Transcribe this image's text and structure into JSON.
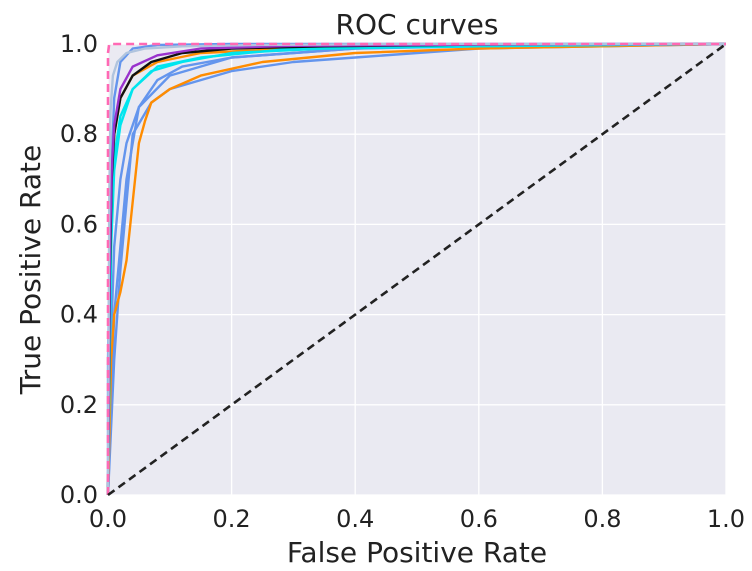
{
  "chart_data": {
    "type": "line",
    "title": "ROC curves",
    "xlabel": "False Positive Rate",
    "ylabel": "True Positive Rate",
    "xlim": [
      0.0,
      1.0
    ],
    "ylim": [
      0.0,
      1.0
    ],
    "xticks": [
      "0.0",
      "0.2",
      "0.4",
      "0.6",
      "0.8",
      "1.0"
    ],
    "yticks": [
      "0.0",
      "0.2",
      "0.4",
      "0.6",
      "0.8",
      "1.0"
    ],
    "grid": true,
    "background_color": "#eaeaf2",
    "grid_color": "#ffffff",
    "series": [
      {
        "color": "#6495ed",
        "x": [
          0.0,
          0.0,
          0.005,
          0.01,
          0.02,
          0.04,
          0.08,
          0.2,
          0.4,
          0.7,
          1.0
        ],
        "y": [
          0.0,
          0.3,
          0.7,
          0.88,
          0.96,
          0.99,
          0.998,
          1.0,
          1.0,
          1.0,
          1.0
        ]
      },
      {
        "color": "#6495ed",
        "x": [
          0.0,
          0.005,
          0.01,
          0.02,
          0.03,
          0.05,
          0.1,
          0.2,
          0.4,
          0.7,
          1.0
        ],
        "y": [
          0.0,
          0.35,
          0.55,
          0.7,
          0.78,
          0.86,
          0.93,
          0.97,
          0.99,
          1.0,
          1.0
        ]
      },
      {
        "color": "#6495ed",
        "x": [
          0.0,
          0.01,
          0.02,
          0.04,
          0.07,
          0.1,
          0.2,
          0.3,
          0.4,
          0.6,
          1.0
        ],
        "y": [
          0.0,
          0.3,
          0.5,
          0.8,
          0.87,
          0.9,
          0.94,
          0.96,
          0.97,
          0.99,
          1.0
        ]
      },
      {
        "color": "#6495ed",
        "x": [
          0.0,
          0.01,
          0.03,
          0.05,
          0.08,
          0.12,
          0.2,
          0.3,
          0.4,
          0.6,
          1.0
        ],
        "y": [
          0.0,
          0.4,
          0.7,
          0.86,
          0.92,
          0.95,
          0.97,
          0.98,
          0.99,
          0.995,
          1.0
        ]
      },
      {
        "color": "#ff8c00",
        "x": [
          0.0,
          0.005,
          0.01,
          0.02,
          0.03,
          0.04,
          0.05,
          0.06,
          0.07,
          0.1,
          0.15,
          0.25,
          0.4,
          0.6,
          1.0
        ],
        "y": [
          0.0,
          0.3,
          0.4,
          0.45,
          0.52,
          0.65,
          0.78,
          0.83,
          0.87,
          0.9,
          0.93,
          0.96,
          0.98,
          0.99,
          1.0
        ]
      },
      {
        "color": "#ff8c00",
        "x": [
          0.0,
          0.005,
          0.01,
          0.02,
          0.04,
          0.08,
          0.15,
          0.3,
          0.5,
          1.0
        ],
        "y": [
          0.0,
          0.6,
          0.8,
          0.88,
          0.93,
          0.96,
          0.98,
          0.99,
          0.995,
          1.0
        ]
      },
      {
        "color": "#00e5ee",
        "x": [
          0.0,
          0.003,
          0.006,
          0.01,
          0.02,
          0.04,
          0.07,
          0.12,
          0.2,
          0.35,
          0.6,
          1.0
        ],
        "y": [
          0.0,
          0.45,
          0.62,
          0.75,
          0.84,
          0.9,
          0.94,
          0.96,
          0.98,
          0.99,
          0.995,
          1.0
        ]
      },
      {
        "color": "#00e5ee",
        "x": [
          0.0,
          0.005,
          0.01,
          0.02,
          0.04,
          0.08,
          0.15,
          0.3,
          0.5,
          1.0
        ],
        "y": [
          0.0,
          0.55,
          0.72,
          0.82,
          0.9,
          0.95,
          0.97,
          0.99,
          0.995,
          1.0
        ]
      },
      {
        "color": "#111111",
        "x": [
          0.0,
          0.003,
          0.006,
          0.01,
          0.02,
          0.04,
          0.07,
          0.12,
          0.2,
          0.35,
          0.6,
          1.0
        ],
        "y": [
          0.0,
          0.5,
          0.7,
          0.8,
          0.88,
          0.93,
          0.96,
          0.98,
          0.99,
          0.995,
          0.999,
          1.0
        ]
      },
      {
        "color": "#9932cc",
        "x": [
          0.0,
          0.003,
          0.006,
          0.01,
          0.02,
          0.04,
          0.08,
          0.15,
          0.3,
          0.6,
          1.0
        ],
        "y": [
          0.0,
          0.55,
          0.72,
          0.82,
          0.9,
          0.95,
          0.975,
          0.99,
          0.996,
          0.999,
          1.0
        ]
      },
      {
        "color": "#b0c4de",
        "x": [
          0.0,
          0.002,
          0.004,
          0.008,
          0.015,
          0.03,
          0.06,
          0.12,
          0.25,
          0.5,
          1.0
        ],
        "y": [
          0.0,
          0.65,
          0.85,
          0.93,
          0.96,
          0.98,
          0.99,
          0.995,
          0.998,
          1.0,
          1.0
        ]
      },
      {
        "color": "#ff69b4",
        "dashed": true,
        "x": [
          0.0,
          0.0,
          0.002,
          1.0
        ],
        "y": [
          0.0,
          0.98,
          1.0,
          1.0
        ]
      },
      {
        "color": "#222222",
        "dashed": true,
        "x": [
          0.0,
          1.0
        ],
        "y": [
          0.0,
          1.0
        ]
      }
    ]
  }
}
